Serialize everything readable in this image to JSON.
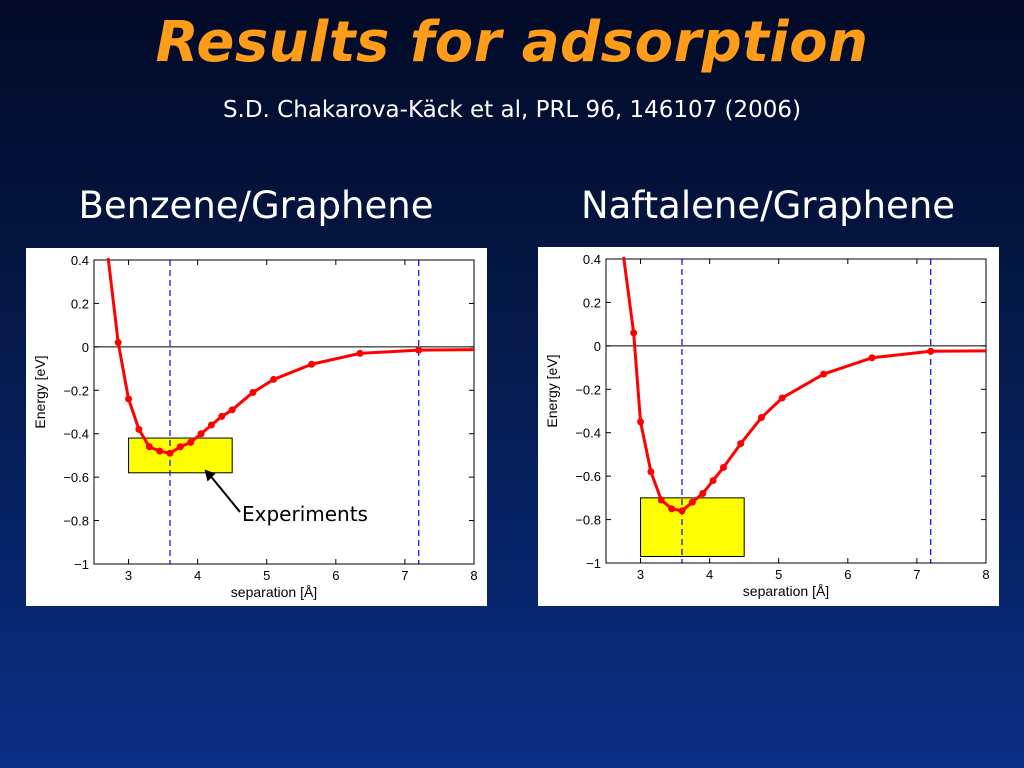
{
  "slide": {
    "title": "Results for adsorption",
    "subtitle": "S.D. Chakarova-Käck et al, PRL 96, 146107 (2006)"
  },
  "colors": {
    "title": "#ff9d1a",
    "curve": "#ff0000",
    "box": "#ffff00",
    "dashed": "#0000ff"
  },
  "chart_data": [
    {
      "type": "line",
      "panel_title": "Benzene/Graphene",
      "xlabel": "separation [Å]",
      "ylabel": "Energy [eV]",
      "xlim": [
        2.5,
        8
      ],
      "ylim": [
        -1,
        0.4
      ],
      "xticks": [
        "3",
        "4",
        "5",
        "6",
        "7",
        "8"
      ],
      "yticks": [
        "0.4",
        "0.2",
        "0",
        "−0.2",
        "−0.4",
        "−0.6",
        "−0.8",
        "−1"
      ],
      "grid": false,
      "series": [
        {
          "x": [
            2.85,
            3.0,
            3.15,
            3.3,
            3.45,
            3.6,
            3.75,
            3.9,
            4.05,
            4.2,
            4.35,
            4.5,
            4.8,
            5.1,
            5.65,
            6.35,
            7.2
          ],
          "y": [
            0.02,
            -0.24,
            -0.38,
            -0.46,
            -0.48,
            -0.49,
            -0.46,
            -0.44,
            -0.4,
            -0.36,
            -0.32,
            -0.29,
            -0.21,
            -0.15,
            -0.08,
            -0.03,
            -0.015
          ]
        }
      ],
      "vlines": [
        3.6,
        7.2
      ],
      "hline": 0,
      "box": {
        "x": [
          3.0,
          4.5
        ],
        "y": [
          -0.58,
          -0.42
        ]
      },
      "annotation": "Experiments"
    },
    {
      "type": "line",
      "panel_title": "Naftalene/Graphene",
      "xlabel": "separation [Å]",
      "ylabel": "Energy [eV]",
      "xlim": [
        2.5,
        8
      ],
      "ylim": [
        -1,
        0.4
      ],
      "xticks": [
        "3",
        "4",
        "5",
        "6",
        "7",
        "8"
      ],
      "yticks": [
        "0.4",
        "0.2",
        "0",
        "−0.2",
        "−0.4",
        "−0.6",
        "−0.8",
        "−1"
      ],
      "grid": false,
      "series": [
        {
          "x": [
            2.9,
            3.0,
            3.15,
            3.3,
            3.45,
            3.6,
            3.75,
            3.9,
            4.05,
            4.2,
            4.45,
            4.75,
            5.05,
            5.65,
            6.35,
            7.2
          ],
          "y": [
            0.06,
            -0.35,
            -0.58,
            -0.71,
            -0.75,
            -0.76,
            -0.72,
            -0.68,
            -0.62,
            -0.56,
            -0.45,
            -0.33,
            -0.24,
            -0.13,
            -0.055,
            -0.025
          ]
        }
      ],
      "vlines": [
        3.6,
        7.2
      ],
      "hline": 0,
      "box": {
        "x": [
          3.0,
          4.5
        ],
        "y": [
          -0.97,
          -0.7
        ]
      }
    }
  ]
}
